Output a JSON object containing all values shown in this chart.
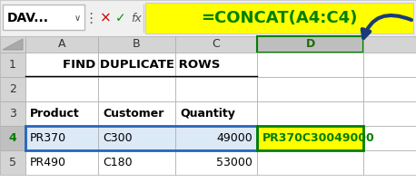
{
  "formula_bar": {
    "name_box": "DAV...",
    "formula": "=CONCAT(A4:C4)",
    "formula_bg": "#FFFF00",
    "formula_fg": "#008000"
  },
  "col_headers": [
    "A",
    "B",
    "C",
    "D"
  ],
  "row_headers": [
    "1",
    "2",
    "3",
    "4",
    "5"
  ],
  "title_text": "FIND DUPLICATE ROWS",
  "header_row": [
    "Product",
    "Customer",
    "Quantity"
  ],
  "data_rows": [
    [
      "PR370",
      "C300",
      "49000",
      "PR370C30049000"
    ],
    [
      "PR490",
      "C180",
      "53000",
      ""
    ]
  ],
  "grid_color": "#AAAAAA",
  "header_bg": "#D4D4D4",
  "selected_col_bg": "#BEBEBE",
  "selected_col_text": "#1F6B00",
  "concat_cell_bg": "#FFFF00",
  "concat_cell_fg": "#008000",
  "concat_border_color": "#008000",
  "selected_row_bg": "#DCE9F7",
  "selected_border": "#2266BB",
  "formula_bar_bg": "#F0F0F0",
  "arrow_color": "#1A3A7A",
  "sheet_bg": "#FFFFFF",
  "name_box_bg": "#FFFFFF",
  "toolbar_bg": "#F0F0F0",
  "row_num_selected_bg": "#C0C0C0",
  "row_num_selected_fg": "#008000"
}
